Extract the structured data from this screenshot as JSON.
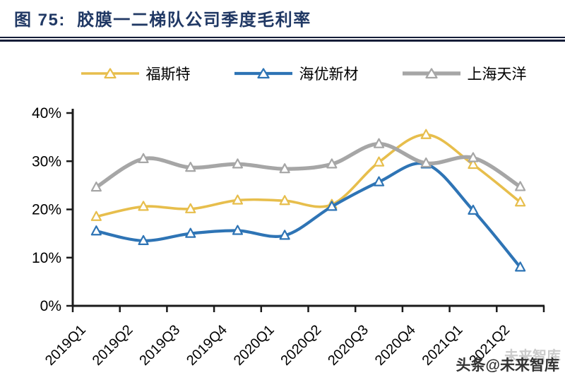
{
  "figure": {
    "title": "图 75:  胶膜一二梯队公司季度毛利率"
  },
  "watermark": {
    "ghost_text": "未来智库",
    "main_text": "头条@未来智库"
  },
  "chart_data": {
    "type": "line",
    "title": "胶膜一二梯队公司季度毛利率",
    "categories": [
      "2019Q1",
      "2019Q2",
      "2019Q3",
      "2019Q4",
      "2020Q1",
      "2020Q2",
      "2020Q3",
      "2020Q4",
      "2021Q1",
      "2021Q2"
    ],
    "series": [
      {
        "name": "福斯特",
        "color": "#E7BE4C",
        "values": [
          18.5,
          20.6,
          20.1,
          21.9,
          21.8,
          21.0,
          29.8,
          35.5,
          29.3,
          21.5
        ]
      },
      {
        "name": "海优新材",
        "color": "#2E74B5",
        "values": [
          15.5,
          13.5,
          15.0,
          15.6,
          14.6,
          20.6,
          25.7,
          29.4,
          19.8,
          8.0
        ]
      },
      {
        "name": "上海天洋",
        "color": "#A6A6A6",
        "values": [
          24.6,
          30.5,
          28.7,
          29.4,
          28.4,
          29.4,
          33.6,
          29.6,
          30.7,
          24.7
        ]
      }
    ],
    "xlabel": "",
    "ylabel": "",
    "ylim": [
      0,
      40
    ],
    "ytick_labels": [
      "0%",
      "10%",
      "20%",
      "30%",
      "40%"
    ],
    "grid": false,
    "legend_position": "top",
    "marker": "open-triangle",
    "axis_color": "#1A1A1A",
    "text_color": "#000000"
  }
}
